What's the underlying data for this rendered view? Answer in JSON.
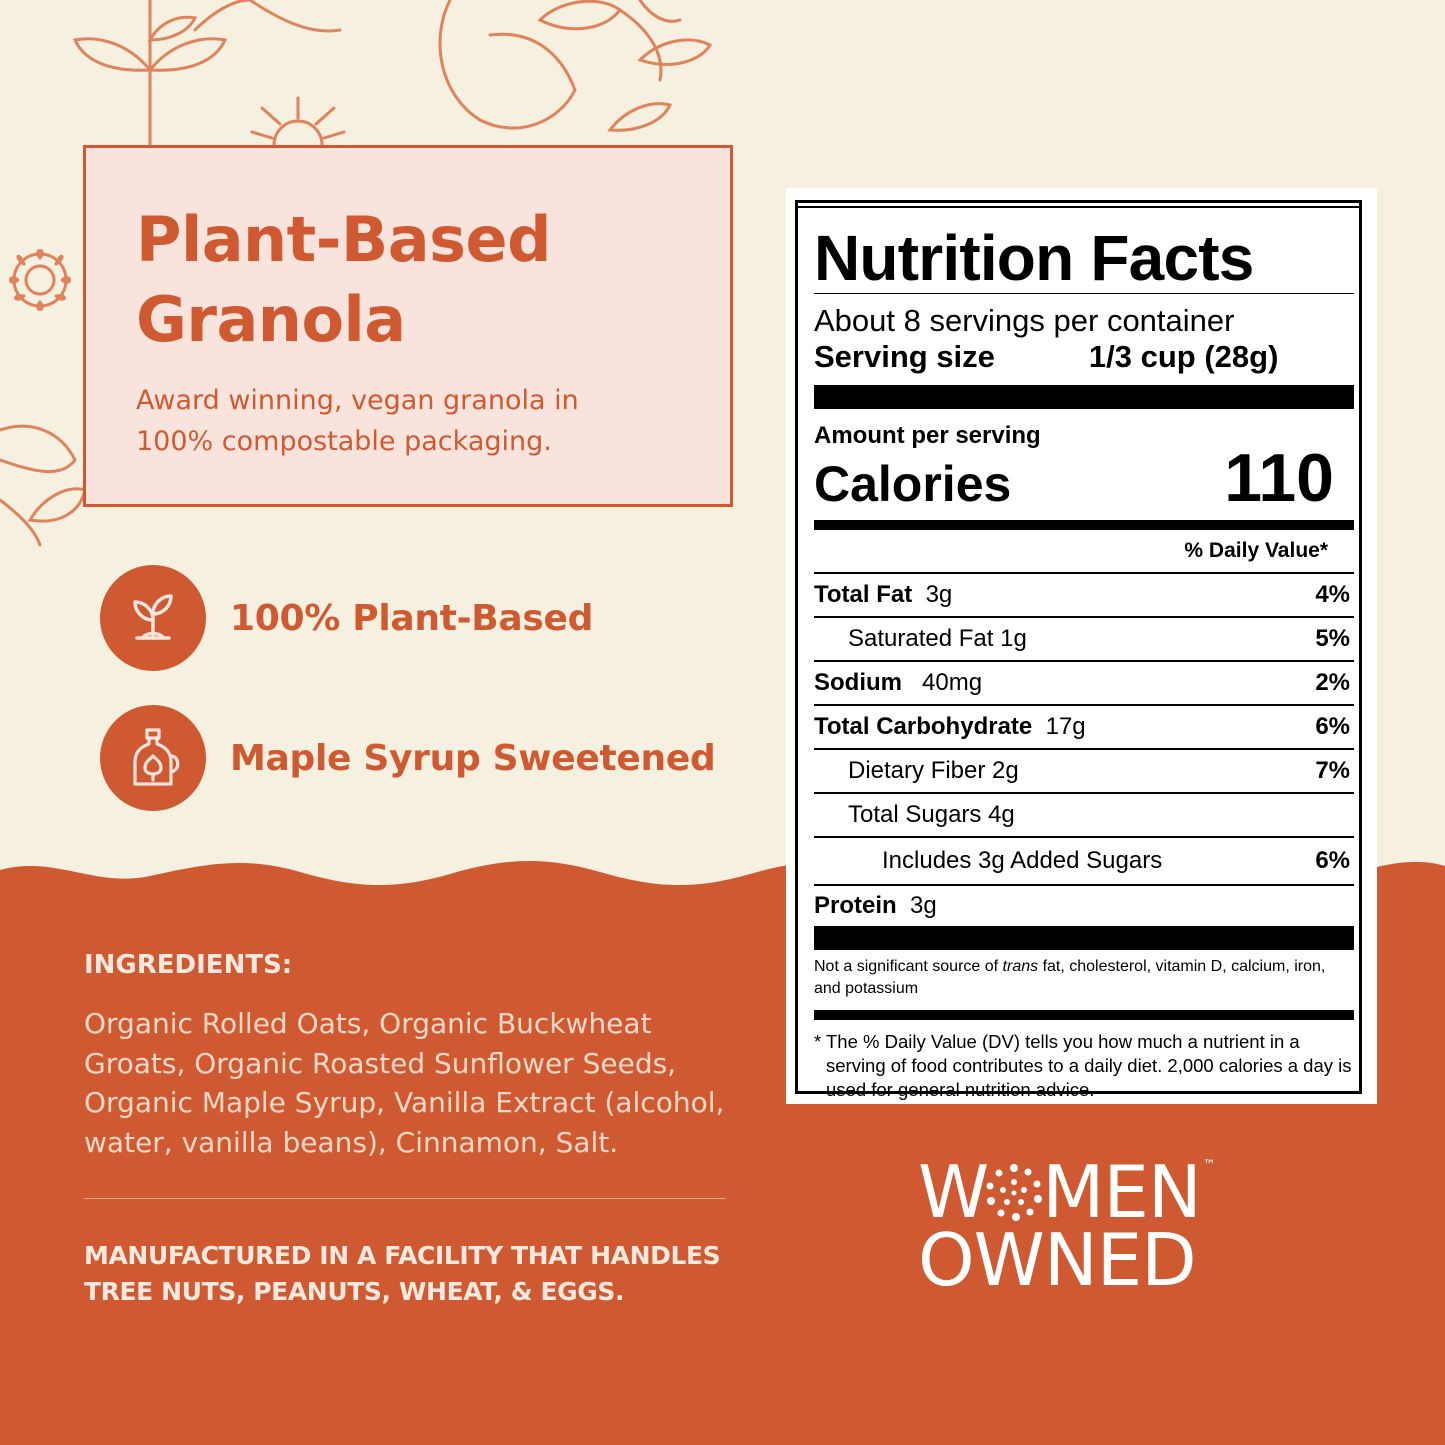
{
  "colors": {
    "background": "#f5f0e0",
    "accent": "#cf5a31",
    "hero_card": "#f8e4dc",
    "lower_section": "#cf5a31"
  },
  "hero": {
    "title_line1": "Plant-Based",
    "title_line2": "Granola",
    "subtitle_line1": "Award winning, vegan granola in",
    "subtitle_line2": "100% compostable packaging."
  },
  "features": [
    {
      "icon": "sprout-icon",
      "label": "100% Plant-Based"
    },
    {
      "icon": "maple-syrup-bottle-icon",
      "label": "Maple Syrup Sweetened"
    }
  ],
  "ingredients": {
    "heading": "INGREDIENTS:",
    "lines": [
      "Organic Rolled Oats, Organic Buckwheat",
      "Groats, Organic Roasted Sunflower Seeds,",
      "Organic Maple Syrup, Vanilla Extract (alcohol,",
      "water, vanilla beans), Cinnamon, Salt."
    ]
  },
  "allergen": {
    "line1": "MANUFACTURED IN A FACILITY THAT HANDLES",
    "line2": "TREE NUTS, PEANUTS, WHEAT, & EGGS."
  },
  "women_owned": {
    "line1_a": "W",
    "line1_b": "MEN",
    "tm": "™",
    "line2": "OWNED"
  },
  "nutrition": {
    "title": "Nutrition Facts",
    "servings": "About 8 servings per container",
    "serving_size_label": "Serving size",
    "serving_size_value": "1/3 cup (28g)",
    "amount_per_serving": "Amount per serving",
    "calories_label": "Calories",
    "calories_value": "110",
    "dv_header": "% Daily Value*",
    "rows": [
      {
        "name": "Total Fat",
        "amount": "3g",
        "dv": "4%"
      },
      {
        "name": "Saturated Fat",
        "amount": "1g",
        "dv": "5%"
      },
      {
        "name": "Sodium",
        "amount": "40mg",
        "dv": "2%"
      },
      {
        "name": "Total Carbohydrate",
        "amount": "17g",
        "dv": "6%"
      },
      {
        "name": "Dietary Fiber",
        "amount": "2g",
        "dv": "7%"
      },
      {
        "name": "Total Sugars",
        "amount": "4g",
        "dv": ""
      },
      {
        "name": "Includes 3g Added Sugars",
        "amount": "",
        "dv": "6%"
      },
      {
        "name": "Protein",
        "amount": "3g",
        "dv": ""
      }
    ],
    "footnote1_a": "Not a significant source of ",
    "footnote1_trans": "trans",
    "footnote1_b": " fat, cholesterol, vitamin D, calcium, iron, and potassium",
    "footnote2": "* The % Daily Value (DV) tells you how much a nutrient in a serving of food contributes to a daily diet. 2,000 calories a day is used for general nutrition advice."
  }
}
